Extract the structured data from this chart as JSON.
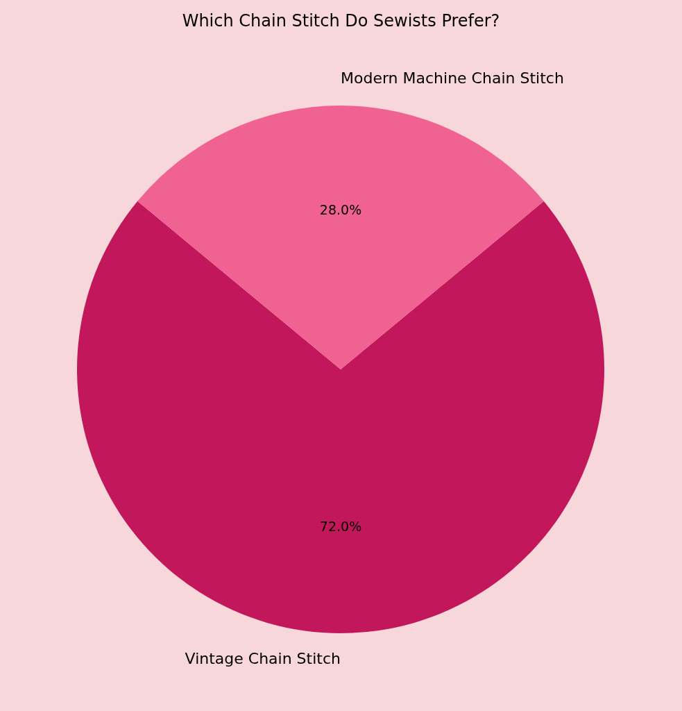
{
  "chart_data": {
    "type": "pie",
    "title": "Which Chain Stitch Do Sewists Prefer?",
    "categories": [
      "Vintage Chain Stitch",
      "Modern Machine Chain Stitch"
    ],
    "values": [
      72,
      28
    ],
    "colors": [
      "#c2185b",
      "#f06292"
    ],
    "value_labels": [
      "72.0%",
      "28.0%"
    ],
    "legend": false
  }
}
